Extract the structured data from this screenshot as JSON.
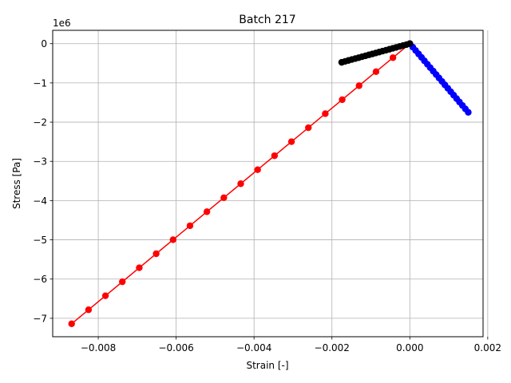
{
  "chart_data": {
    "type": "line",
    "title": "Batch 217",
    "xlabel": "Strain [-]",
    "ylabel": "Stress [Pa]",
    "y_offset_label": "1e6",
    "xlim": [
      -0.00917,
      0.00188
    ],
    "ylim": [
      -7.47,
      0.34
    ],
    "grid": true,
    "x_ticks": [
      {
        "value": -0.008,
        "label": "−0.008"
      },
      {
        "value": -0.006,
        "label": "−0.006"
      },
      {
        "value": -0.004,
        "label": "−0.004"
      },
      {
        "value": -0.002,
        "label": "−0.002"
      },
      {
        "value": 0.0,
        "label": "0.000"
      },
      {
        "value": 0.002,
        "label": "0.002"
      }
    ],
    "y_ticks": [
      {
        "value": 0,
        "label": "0"
      },
      {
        "value": -1,
        "label": "−1"
      },
      {
        "value": -2,
        "label": "−2"
      },
      {
        "value": -3,
        "label": "−3"
      },
      {
        "value": -4,
        "label": "−4"
      },
      {
        "value": -5,
        "label": "−5"
      },
      {
        "value": -6,
        "label": "−6"
      },
      {
        "value": -7,
        "label": "−7"
      }
    ],
    "series": [
      {
        "color": "#ff0000",
        "x": [
          0.0,
          -0.000434,
          -0.000868,
          -0.001303,
          -0.001737,
          -0.002171,
          -0.002605,
          -0.003039,
          -0.003474,
          -0.003908,
          -0.004342,
          -0.004776,
          -0.005211,
          -0.005645,
          -0.006079,
          -0.006513,
          -0.006947,
          -0.007382,
          -0.007816,
          -0.00825,
          -0.008684
        ],
        "y": [
          0.0,
          -0.357,
          -0.714,
          -1.071,
          -1.428,
          -1.785,
          -2.142,
          -2.499,
          -2.856,
          -3.213,
          -3.57,
          -3.927,
          -4.284,
          -4.641,
          -4.998,
          -5.355,
          -5.712,
          -6.069,
          -6.426,
          -6.783,
          -7.14
        ]
      },
      {
        "color": "#0000ff",
        "x": [
          0.0,
          7.5e-05,
          0.00015,
          0.000225,
          0.0003,
          0.000375,
          0.00045,
          0.000525,
          0.0006,
          0.000675,
          0.00075,
          0.000825,
          0.0009,
          0.000975,
          0.00105,
          0.001125,
          0.0012,
          0.001275,
          0.00135,
          0.001425,
          0.0015
        ],
        "y": [
          0.0,
          -0.0875,
          -0.175,
          -0.2625,
          -0.35,
          -0.4375,
          -0.525,
          -0.6125,
          -0.7,
          -0.7875,
          -0.875,
          -0.9625,
          -1.05,
          -1.1375,
          -1.225,
          -1.3125,
          -1.4,
          -1.4875,
          -1.575,
          -1.6625,
          -1.75
        ]
      },
      {
        "color": "#000000",
        "x": [
          0.0,
          -8.75e-05,
          -0.000175,
          -0.0002625,
          -0.00035,
          -0.0004375,
          -0.000525,
          -0.0006125,
          -0.0007,
          -0.0007875,
          -0.000875,
          -0.0009625,
          -0.00105,
          -0.0011375,
          -0.001225,
          -0.0013125,
          -0.0014,
          -0.0014875,
          -0.001575,
          -0.0016625,
          -0.00175
        ],
        "y": [
          0.0,
          -0.024,
          -0.048,
          -0.071,
          -0.095,
          -0.119,
          -0.143,
          -0.167,
          -0.19,
          -0.214,
          -0.238,
          -0.262,
          -0.285,
          -0.309,
          -0.333,
          -0.357,
          -0.381,
          -0.404,
          -0.428,
          -0.452,
          -0.476
        ]
      }
    ]
  }
}
